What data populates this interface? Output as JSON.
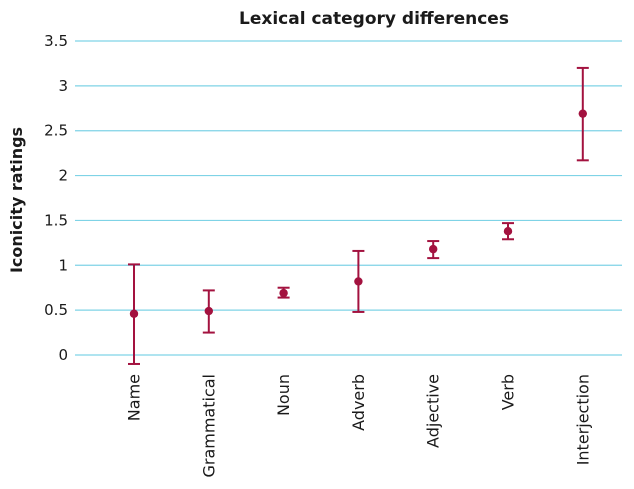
{
  "colors": {
    "gridline": "#7fd3e6",
    "marker": "#a3123f",
    "text": "#1a1a1a"
  },
  "chart_data": {
    "type": "scatter",
    "title": "Lexical category differences",
    "xlabel": "",
    "ylabel": "Iconicity ratings",
    "ylim": [
      0,
      3.5
    ],
    "yticks": [
      "0",
      "0.5",
      "1",
      "1.5",
      "2",
      "2.5",
      "3",
      "3.5"
    ],
    "grid": true,
    "categories": [
      "Name",
      "Grammatical",
      "Noun",
      "Adverb",
      "Adjective",
      "Verb",
      "Interjection"
    ],
    "values": [
      0.46,
      0.49,
      0.69,
      0.82,
      1.18,
      1.38,
      2.69
    ],
    "error_low": [
      -0.1,
      0.25,
      0.64,
      0.48,
      1.08,
      1.29,
      2.17
    ],
    "error_high": [
      1.01,
      0.72,
      0.75,
      1.16,
      1.27,
      1.47,
      3.2
    ]
  }
}
